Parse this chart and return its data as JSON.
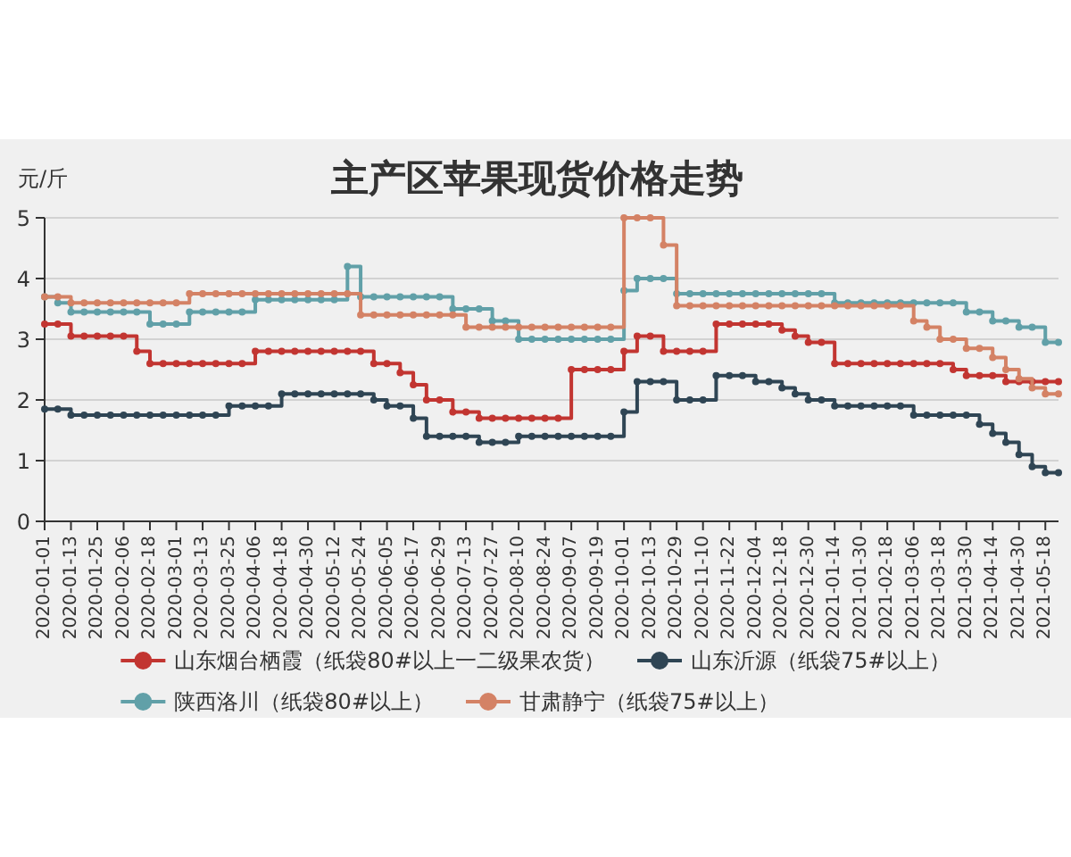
{
  "chart_data": {
    "type": "step",
    "title": "主产区苹果现货价格走势",
    "ylabel": "元/斤",
    "categories": [
      "2020-01-01",
      null,
      "2020-01-13",
      null,
      "2020-01-25",
      null,
      "2020-02-06",
      null,
      "2020-02-18",
      null,
      "2020-03-01",
      null,
      "2020-03-13",
      null,
      "2020-03-25",
      null,
      "2020-04-06",
      null,
      "2020-04-18",
      null,
      "2020-04-30",
      null,
      "2020-05-12",
      null,
      "2020-05-24",
      null,
      "2020-06-05",
      null,
      "2020-06-17",
      null,
      "2020-06-29",
      null,
      "2020-07-13",
      null,
      "2020-07-27",
      null,
      "2020-08-10",
      null,
      "2020-08-24",
      null,
      "2020-09-07",
      null,
      "2020-09-19",
      null,
      "2020-10-01",
      null,
      "2020-10-13",
      null,
      "2020-10-29",
      null,
      "2020-11-10",
      null,
      "2020-11-22",
      null,
      "2020-12-04",
      null,
      "2020-12-18",
      null,
      "2020-12-30",
      null,
      "2021-01-14",
      null,
      "2021-01-30",
      null,
      "2021-02-18",
      null,
      "2021-03-06",
      null,
      "2021-03-18",
      null,
      "2021-03-30",
      null,
      "2021-04-14",
      null,
      "2021-04-30",
      null,
      "2021-05-18",
      null
    ],
    "series": [
      {
        "name": "山东烟台栖霞（纸袋80#以上一二级果农货）",
        "color": "#c23531",
        "values": [
          3.25,
          3.25,
          3.05,
          3.05,
          3.05,
          3.05,
          3.05,
          2.8,
          2.6,
          2.6,
          2.6,
          2.6,
          2.6,
          2.6,
          2.6,
          2.6,
          2.8,
          2.8,
          2.8,
          2.8,
          2.8,
          2.8,
          2.8,
          2.8,
          2.8,
          2.6,
          2.6,
          2.45,
          2.25,
          2.0,
          2.0,
          1.8,
          1.8,
          1.7,
          1.7,
          1.7,
          1.7,
          1.7,
          1.7,
          1.7,
          2.5,
          2.5,
          2.5,
          2.5,
          2.8,
          3.05,
          3.05,
          2.8,
          2.8,
          2.8,
          2.8,
          3.25,
          3.25,
          3.25,
          3.25,
          3.25,
          3.15,
          3.05,
          2.95,
          2.95,
          2.6,
          2.6,
          2.6,
          2.6,
          2.6,
          2.6,
          2.6,
          2.6,
          2.6,
          2.5,
          2.4,
          2.4,
          2.4,
          2.3,
          2.3,
          2.3,
          2.3,
          2.3
        ]
      },
      {
        "name": "山东沂源（纸袋75#以上）",
        "color": "#2f4554",
        "values": [
          1.85,
          1.85,
          1.75,
          1.75,
          1.75,
          1.75,
          1.75,
          1.75,
          1.75,
          1.75,
          1.75,
          1.75,
          1.75,
          1.75,
          1.9,
          1.9,
          1.9,
          1.9,
          2.1,
          2.1,
          2.1,
          2.1,
          2.1,
          2.1,
          2.1,
          2.0,
          1.9,
          1.9,
          1.7,
          1.4,
          1.4,
          1.4,
          1.4,
          1.3,
          1.3,
          1.3,
          1.4,
          1.4,
          1.4,
          1.4,
          1.4,
          1.4,
          1.4,
          1.4,
          1.8,
          2.3,
          2.3,
          2.3,
          2.0,
          2.0,
          2.0,
          2.4,
          2.4,
          2.4,
          2.3,
          2.3,
          2.2,
          2.1,
          2.0,
          2.0,
          1.9,
          1.9,
          1.9,
          1.9,
          1.9,
          1.9,
          1.75,
          1.75,
          1.75,
          1.75,
          1.75,
          1.6,
          1.45,
          1.3,
          1.1,
          0.9,
          0.8,
          0.8
        ]
      },
      {
        "name": "陕西洛川（纸袋80#以上）",
        "color": "#61a0a8",
        "values": [
          3.7,
          3.6,
          3.45,
          3.45,
          3.45,
          3.45,
          3.45,
          3.45,
          3.25,
          3.25,
          3.25,
          3.45,
          3.45,
          3.45,
          3.45,
          3.45,
          3.65,
          3.65,
          3.65,
          3.65,
          3.65,
          3.65,
          3.65,
          4.2,
          3.7,
          3.7,
          3.7,
          3.7,
          3.7,
          3.7,
          3.7,
          3.5,
          3.5,
          3.5,
          3.3,
          3.3,
          3.0,
          3.0,
          3.0,
          3.0,
          3.0,
          3.0,
          3.0,
          3.0,
          3.8,
          4.0,
          4.0,
          4.0,
          3.75,
          3.75,
          3.75,
          3.75,
          3.75,
          3.75,
          3.75,
          3.75,
          3.75,
          3.75,
          3.75,
          3.75,
          3.6,
          3.6,
          3.6,
          3.6,
          3.6,
          3.6,
          3.6,
          3.6,
          3.6,
          3.6,
          3.45,
          3.45,
          3.3,
          3.3,
          3.2,
          3.2,
          2.95,
          2.95
        ]
      },
      {
        "name": "甘肃静宁（纸袋75#以上）",
        "color": "#d48265",
        "values": [
          3.7,
          3.7,
          3.6,
          3.6,
          3.6,
          3.6,
          3.6,
          3.6,
          3.6,
          3.6,
          3.6,
          3.75,
          3.75,
          3.75,
          3.75,
          3.75,
          3.75,
          3.75,
          3.75,
          3.75,
          3.75,
          3.75,
          3.75,
          3.75,
          3.4,
          3.4,
          3.4,
          3.4,
          3.4,
          3.4,
          3.4,
          3.4,
          3.2,
          3.2,
          3.2,
          3.2,
          3.2,
          3.2,
          3.2,
          3.2,
          3.2,
          3.2,
          3.2,
          3.2,
          5.0,
          5.0,
          5.0,
          4.55,
          3.55,
          3.55,
          3.55,
          3.55,
          3.55,
          3.55,
          3.55,
          3.55,
          3.55,
          3.55,
          3.55,
          3.55,
          3.55,
          3.55,
          3.55,
          3.55,
          3.55,
          3.55,
          3.3,
          3.2,
          3.0,
          3.0,
          2.85,
          2.85,
          2.7,
          2.5,
          2.35,
          2.2,
          2.1,
          2.1
        ]
      }
    ],
    "ylim": [
      0,
      5
    ],
    "yticks": [
      0,
      1,
      2,
      3,
      4,
      5
    ],
    "grid": "y",
    "legend": "bottom",
    "marker": "circle",
    "line_style": "solid"
  }
}
